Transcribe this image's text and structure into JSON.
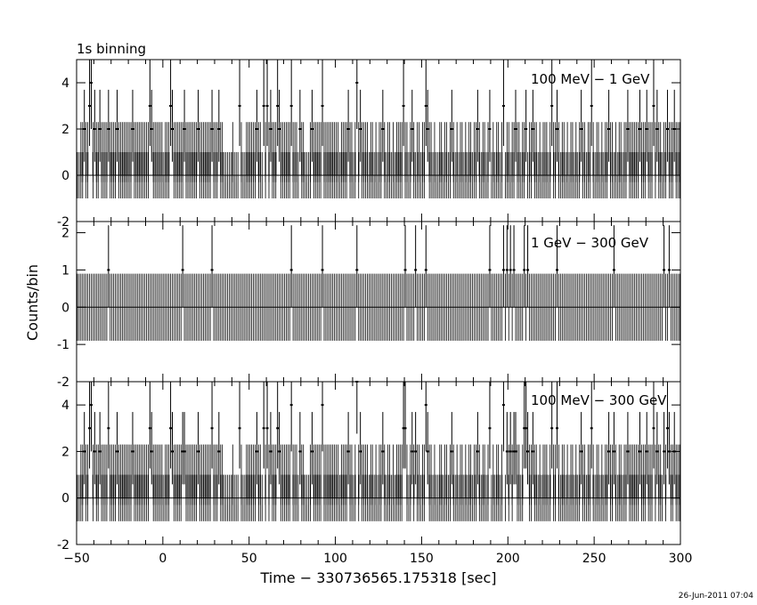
{
  "header": {
    "title": "1s binning"
  },
  "footer": {
    "timestamp": "26-Jun-2011 07:04"
  },
  "chart_data": {
    "type": "bar",
    "title": "1s binning",
    "xlabel": "Time − 330736565.175318 [sec]",
    "ylabel": "Counts/bin",
    "xlim": [
      -50,
      300
    ],
    "xticks": [
      -50,
      0,
      50,
      100,
      150,
      200,
      250,
      300
    ],
    "grid": false,
    "panels": [
      {
        "label": "100 MeV − 1 GeV",
        "ylim": [
          -2,
          5
        ],
        "yticks": [
          -2,
          0,
          2,
          4
        ],
        "errorbar_half": 1.0,
        "baseline_events": [
          -48,
          -47,
          -45,
          -44,
          -42,
          -41,
          -39,
          -38,
          -36,
          -35,
          -34,
          -33,
          -31,
          -30,
          -29,
          -28,
          -26,
          -25,
          -24,
          -23,
          -22,
          -21,
          -20,
          -19,
          -17,
          -16,
          -15,
          -14,
          -13,
          -12,
          -11,
          -10,
          -9,
          -8,
          -6,
          -5,
          -4,
          -3,
          -2,
          -1,
          1,
          2,
          3,
          6,
          7,
          8,
          9,
          10,
          11,
          13,
          14,
          15,
          16,
          17,
          18,
          19,
          20,
          21,
          22,
          23,
          24,
          25,
          26,
          27,
          29,
          30,
          31,
          33,
          34,
          40,
          44,
          45,
          48,
          49,
          50,
          51,
          52,
          53,
          55,
          56,
          59,
          60,
          61,
          63,
          64,
          65,
          68,
          69,
          70,
          71,
          72,
          73,
          75,
          76,
          77,
          80,
          81,
          85,
          87,
          88,
          89,
          90,
          91,
          92,
          93,
          94,
          95,
          96,
          97,
          98,
          99,
          100,
          101,
          103,
          104,
          105,
          106,
          108,
          109,
          111,
          113,
          115,
          116,
          117,
          118,
          120,
          121,
          123,
          125,
          126,
          128,
          130,
          131,
          133,
          135,
          136,
          137,
          138,
          140,
          141,
          143,
          145,
          147,
          148,
          150,
          151,
          152,
          154,
          155,
          157,
          160,
          161,
          163,
          164,
          166,
          168,
          170,
          172,
          173,
          175,
          177,
          178,
          180,
          181,
          183,
          185,
          186,
          188,
          189,
          191,
          193,
          194,
          196,
          197,
          199,
          200,
          202,
          203,
          205,
          206,
          208,
          209,
          210,
          212,
          213,
          215,
          216,
          218,
          220,
          221,
          222,
          224,
          226,
          227,
          229,
          231,
          232,
          234,
          236,
          237,
          239,
          241,
          243,
          244,
          246,
          247,
          249,
          251,
          252,
          254,
          256,
          257,
          259,
          260,
          262,
          264,
          265,
          267,
          268,
          270,
          271,
          272,
          273,
          274,
          275,
          276,
          277,
          278,
          279,
          280,
          281,
          282,
          283,
          285,
          287,
          288,
          290,
          291,
          293,
          294,
          295,
          297,
          298,
          299
        ],
        "peaks": [
          {
            "t": -46,
            "v": 2
          },
          {
            "t": -43,
            "v": 3
          },
          {
            "t": -42,
            "v": 4
          },
          {
            "t": -40,
            "v": 2
          },
          {
            "t": -37,
            "v": 2
          },
          {
            "t": -32,
            "v": 2
          },
          {
            "t": -27,
            "v": 2
          },
          {
            "t": -18,
            "v": 2
          },
          {
            "t": -8,
            "v": 3
          },
          {
            "t": -7,
            "v": 2
          },
          {
            "t": 4,
            "v": 3
          },
          {
            "t": 5,
            "v": 2
          },
          {
            "t": 12,
            "v": 2
          },
          {
            "t": 20,
            "v": 2
          },
          {
            "t": 28,
            "v": 2
          },
          {
            "t": 32,
            "v": 2
          },
          {
            "t": 44,
            "v": 3
          },
          {
            "t": 54,
            "v": 2
          },
          {
            "t": 58,
            "v": 3
          },
          {
            "t": 60,
            "v": 3
          },
          {
            "t": 62,
            "v": 2
          },
          {
            "t": 66,
            "v": 3
          },
          {
            "t": 67,
            "v": 2
          },
          {
            "t": 74,
            "v": 3
          },
          {
            "t": 79,
            "v": 2
          },
          {
            "t": 86,
            "v": 2
          },
          {
            "t": 92,
            "v": 3
          },
          {
            "t": 107,
            "v": 2
          },
          {
            "t": 112,
            "v": 4
          },
          {
            "t": 114,
            "v": 2
          },
          {
            "t": 127,
            "v": 2
          },
          {
            "t": 139,
            "v": 3
          },
          {
            "t": 144,
            "v": 2
          },
          {
            "t": 152,
            "v": 3
          },
          {
            "t": 153,
            "v": 2
          },
          {
            "t": 167,
            "v": 2
          },
          {
            "t": 182,
            "v": 2
          },
          {
            "t": 189,
            "v": 2
          },
          {
            "t": 197,
            "v": 3
          },
          {
            "t": 204,
            "v": 2
          },
          {
            "t": 210,
            "v": 2
          },
          {
            "t": 214,
            "v": 2
          },
          {
            "t": 225,
            "v": 3
          },
          {
            "t": 228,
            "v": 2
          },
          {
            "t": 242,
            "v": 2
          },
          {
            "t": 248,
            "v": 3
          },
          {
            "t": 258,
            "v": 2
          },
          {
            "t": 269,
            "v": 2
          },
          {
            "t": 276,
            "v": 2
          },
          {
            "t": 280,
            "v": 2
          },
          {
            "t": 284,
            "v": 3
          },
          {
            "t": 286,
            "v": 2
          },
          {
            "t": 292,
            "v": 2
          },
          {
            "t": 296,
            "v": 2
          }
        ]
      },
      {
        "label": "1 GeV − 300 GeV",
        "ylim": [
          -2,
          2.3
        ],
        "yticks": [
          -2,
          -1,
          0,
          1,
          2
        ],
        "errorbar_half": 0.9,
        "baseline_events": [],
        "peaks": [
          {
            "t": -32,
            "v": 1
          },
          {
            "t": 11,
            "v": 1
          },
          {
            "t": 28,
            "v": 1
          },
          {
            "t": 74,
            "v": 1
          },
          {
            "t": 92,
            "v": 1
          },
          {
            "t": 112,
            "v": 1
          },
          {
            "t": 140,
            "v": 1
          },
          {
            "t": 146,
            "v": 1
          },
          {
            "t": 152,
            "v": 1
          },
          {
            "t": 189,
            "v": 1
          },
          {
            "t": 197,
            "v": 1
          },
          {
            "t": 199,
            "v": 1
          },
          {
            "t": 201,
            "v": 1
          },
          {
            "t": 203,
            "v": 1
          },
          {
            "t": 209,
            "v": 1
          },
          {
            "t": 211,
            "v": 1
          },
          {
            "t": 228,
            "v": 1
          },
          {
            "t": 261,
            "v": 1
          },
          {
            "t": 290,
            "v": 1
          },
          {
            "t": 293,
            "v": 1
          }
        ]
      },
      {
        "label": "100 MeV − 300 GeV",
        "ylim": [
          -2,
          5
        ],
        "yticks": [
          -2,
          0,
          2,
          4
        ],
        "errorbar_half": 1.0,
        "baseline_events": [
          -48,
          -47,
          -45,
          -44,
          -42,
          -41,
          -39,
          -38,
          -36,
          -35,
          -34,
          -33,
          -31,
          -30,
          -29,
          -28,
          -26,
          -25,
          -24,
          -23,
          -22,
          -21,
          -20,
          -19,
          -17,
          -16,
          -15,
          -14,
          -13,
          -12,
          -11,
          -10,
          -9,
          -8,
          -6,
          -5,
          -4,
          -3,
          -2,
          -1,
          1,
          2,
          3,
          6,
          7,
          8,
          9,
          10,
          11,
          13,
          14,
          15,
          16,
          17,
          18,
          19,
          20,
          21,
          22,
          23,
          24,
          25,
          26,
          27,
          29,
          30,
          31,
          33,
          34,
          40,
          44,
          45,
          48,
          49,
          50,
          51,
          52,
          53,
          55,
          56,
          59,
          60,
          61,
          63,
          64,
          65,
          68,
          69,
          70,
          71,
          72,
          73,
          75,
          76,
          77,
          80,
          81,
          85,
          87,
          88,
          89,
          90,
          91,
          92,
          93,
          94,
          95,
          96,
          97,
          98,
          99,
          100,
          101,
          103,
          104,
          105,
          106,
          108,
          109,
          111,
          113,
          115,
          116,
          117,
          118,
          120,
          121,
          123,
          125,
          126,
          128,
          130,
          131,
          133,
          135,
          136,
          137,
          138,
          140,
          141,
          143,
          145,
          147,
          148,
          150,
          151,
          152,
          154,
          155,
          157,
          160,
          161,
          163,
          164,
          166,
          168,
          170,
          172,
          173,
          175,
          177,
          178,
          180,
          181,
          183,
          185,
          186,
          188,
          189,
          191,
          193,
          194,
          196,
          197,
          199,
          200,
          202,
          203,
          205,
          206,
          208,
          209,
          210,
          212,
          213,
          215,
          216,
          218,
          220,
          221,
          222,
          224,
          226,
          227,
          229,
          231,
          232,
          234,
          236,
          237,
          239,
          241,
          243,
          244,
          246,
          247,
          249,
          251,
          252,
          254,
          256,
          257,
          259,
          260,
          262,
          264,
          265,
          267,
          268,
          270,
          271,
          272,
          273,
          274,
          275,
          276,
          277,
          278,
          279,
          280,
          281,
          282,
          283,
          285,
          287,
          288,
          290,
          291,
          293,
          294,
          295,
          297,
          298,
          299
        ],
        "peaks": [
          {
            "t": -46,
            "v": 2
          },
          {
            "t": -43,
            "v": 3
          },
          {
            "t": -42,
            "v": 4
          },
          {
            "t": -40,
            "v": 2
          },
          {
            "t": -37,
            "v": 2
          },
          {
            "t": -32,
            "v": 3
          },
          {
            "t": -27,
            "v": 2
          },
          {
            "t": -18,
            "v": 2
          },
          {
            "t": -8,
            "v": 3
          },
          {
            "t": -7,
            "v": 2
          },
          {
            "t": 4,
            "v": 3
          },
          {
            "t": 5,
            "v": 2
          },
          {
            "t": 11,
            "v": 2
          },
          {
            "t": 12,
            "v": 2
          },
          {
            "t": 20,
            "v": 2
          },
          {
            "t": 28,
            "v": 3
          },
          {
            "t": 32,
            "v": 2
          },
          {
            "t": 44,
            "v": 3
          },
          {
            "t": 54,
            "v": 2
          },
          {
            "t": 58,
            "v": 3
          },
          {
            "t": 60,
            "v": 3
          },
          {
            "t": 62,
            "v": 2
          },
          {
            "t": 66,
            "v": 3
          },
          {
            "t": 67,
            "v": 2
          },
          {
            "t": 74,
            "v": 4
          },
          {
            "t": 79,
            "v": 2
          },
          {
            "t": 86,
            "v": 2
          },
          {
            "t": 92,
            "v": 4
          },
          {
            "t": 107,
            "v": 2
          },
          {
            "t": 112,
            "v": 5
          },
          {
            "t": 114,
            "v": 2
          },
          {
            "t": 127,
            "v": 2
          },
          {
            "t": 139,
            "v": 3
          },
          {
            "t": 140,
            "v": 3
          },
          {
            "t": 144,
            "v": 2
          },
          {
            "t": 146,
            "v": 2
          },
          {
            "t": 152,
            "v": 4
          },
          {
            "t": 153,
            "v": 2
          },
          {
            "t": 167,
            "v": 2
          },
          {
            "t": 182,
            "v": 2
          },
          {
            "t": 189,
            "v": 3
          },
          {
            "t": 197,
            "v": 4
          },
          {
            "t": 199,
            "v": 2
          },
          {
            "t": 201,
            "v": 2
          },
          {
            "t": 203,
            "v": 2
          },
          {
            "t": 204,
            "v": 2
          },
          {
            "t": 209,
            "v": 3
          },
          {
            "t": 210,
            "v": 3
          },
          {
            "t": 211,
            "v": 2
          },
          {
            "t": 214,
            "v": 2
          },
          {
            "t": 225,
            "v": 3
          },
          {
            "t": 228,
            "v": 3
          },
          {
            "t": 242,
            "v": 2
          },
          {
            "t": 248,
            "v": 3
          },
          {
            "t": 258,
            "v": 2
          },
          {
            "t": 261,
            "v": 2
          },
          {
            "t": 269,
            "v": 2
          },
          {
            "t": 276,
            "v": 2
          },
          {
            "t": 280,
            "v": 2
          },
          {
            "t": 284,
            "v": 3
          },
          {
            "t": 286,
            "v": 2
          },
          {
            "t": 290,
            "v": 2
          },
          {
            "t": 292,
            "v": 3
          },
          {
            "t": 293,
            "v": 2
          },
          {
            "t": 296,
            "v": 2
          }
        ]
      }
    ]
  }
}
